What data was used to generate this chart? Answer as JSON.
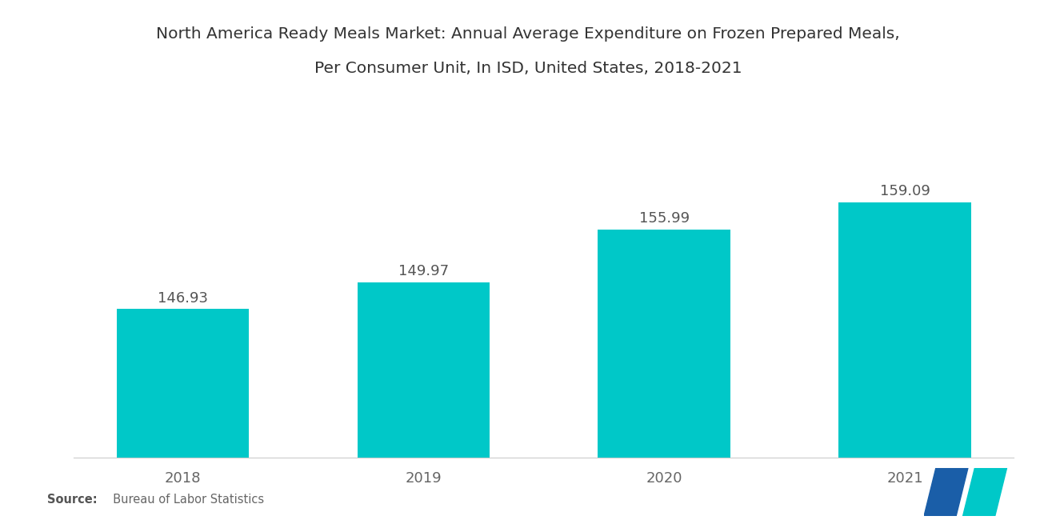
{
  "title_line1": "North America Ready Meals Market: Annual Average Expenditure on Frozen Prepared Meals,",
  "title_line2": "Per Consumer Unit, In ISD, United States, 2018-2021",
  "years": [
    "2018",
    "2019",
    "2020",
    "2021"
  ],
  "values": [
    146.93,
    149.97,
    155.99,
    159.09
  ],
  "bar_color": "#00C8C8",
  "background_color": "#FFFFFF",
  "title_fontsize": 14.5,
  "label_fontsize": 13,
  "tick_fontsize": 13,
  "source_bold": "Source:",
  "source_normal": "  Bureau of Labor Statistics",
  "ylim_min": 130,
  "ylim_max": 170,
  "bar_width": 0.55,
  "label_color": "#555555",
  "tick_color": "#666666",
  "title_color": "#333333",
  "logo_blue": "#1A5EA8",
  "logo_teal": "#00C8C8"
}
